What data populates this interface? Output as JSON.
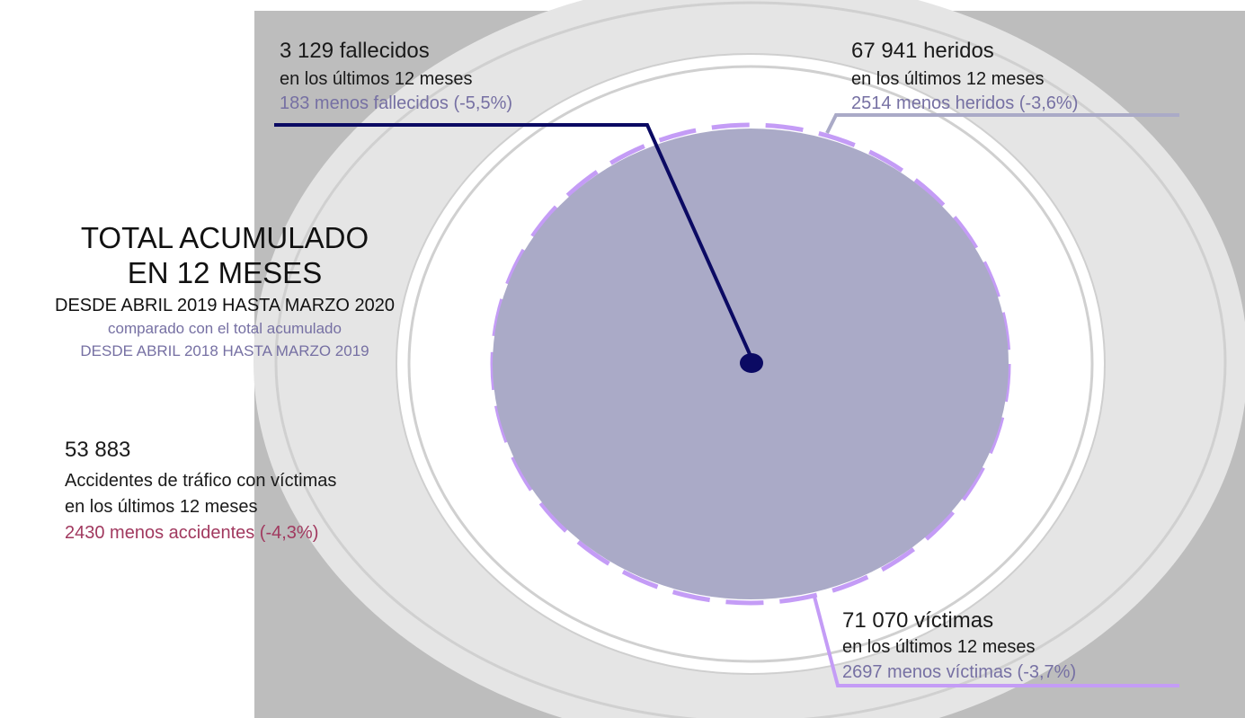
{
  "summary": {
    "title_line1": "TOTAL ACUMULADO",
    "title_line2": "EN 12 MESES",
    "period": "DESDE ABRIL 2019 HASTA MARZO 2020",
    "compare_line1": "comparado con el total acumulado",
    "compare_line2": "DESDE ABRIL 2018 HASTA MARZO 2019"
  },
  "fallecidos": {
    "value": "3 129 fallecidos",
    "period": "en los últimos 12 meses",
    "change": "183 menos fallecidos (-5,5%)",
    "color": "#0b0a63"
  },
  "heridos": {
    "value": "67 941 heridos",
    "period": "en los últimos 12 meses",
    "change": "2514 menos heridos (-3,6%)",
    "color": "#aaaac7"
  },
  "victimas": {
    "value": "71 070 víctimas",
    "period": "en los últimos 12 meses",
    "change": "2697 menos víctimas (-3,7%)",
    "color": "#c49cf6"
  },
  "accidentes": {
    "value": "53 883",
    "label": "Accidentes de tráfico con víctimas",
    "period": "en los últimos 12 meses",
    "change": "2430 menos accidentes (-4,3%)",
    "color": "#a1395f"
  }
}
